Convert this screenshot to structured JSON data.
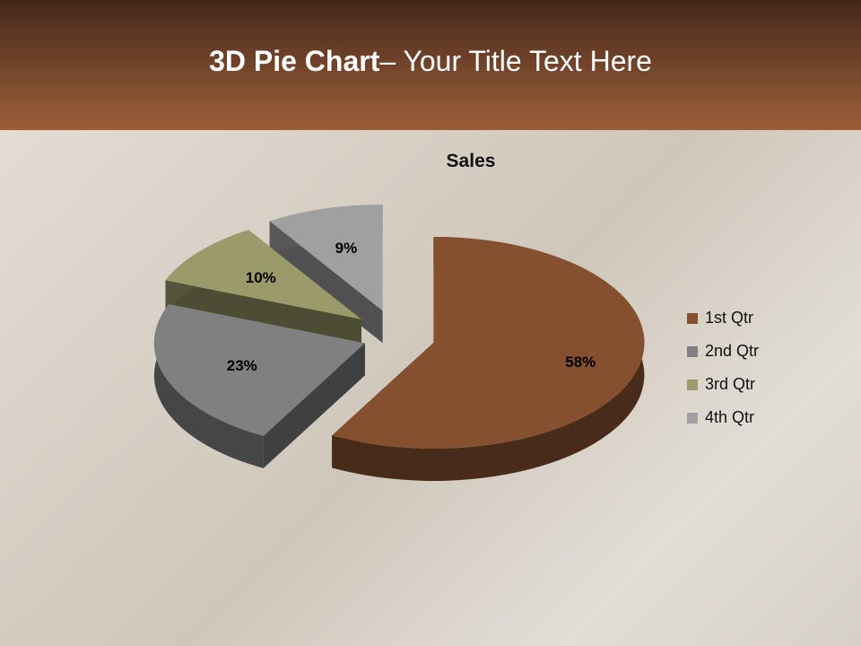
{
  "slide": {
    "title_bold": "3D Pie Chart",
    "title_rest": "– Your Title Text Here"
  },
  "chart_data": {
    "type": "pie",
    "title": "Sales",
    "categories": [
      "1st Qtr",
      "2nd Qtr",
      "3rd Qtr",
      "4th Qtr"
    ],
    "values": [
      58,
      23,
      10,
      9
    ],
    "data_labels": [
      "58%",
      "23%",
      "10%",
      "9%"
    ],
    "colors": [
      "#84502f",
      "#808080",
      "#9a9a6a",
      "#a0a0a0"
    ],
    "legend_position": "right",
    "exploded": true,
    "three_d": true
  }
}
